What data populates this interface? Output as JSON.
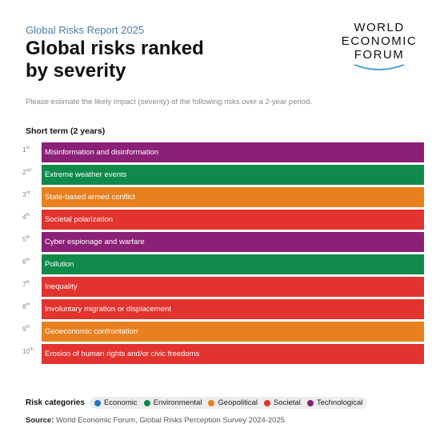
{
  "header": {
    "report_label": "Global Risks Report 2025",
    "title_line1": "Global risks ranked",
    "title_line2": "by severity",
    "subtitle": "Please estimate the likely impact (severity) of the following risks over a 2-year period."
  },
  "logo": {
    "line1": "WORLD",
    "line2": "ECONOMIC",
    "line3": "FORUM"
  },
  "section_label": "Short term (2 years)",
  "categories": {
    "Economic": "#1f78c8",
    "Environmental": "#0f8a4a",
    "Geopolitical": "#e8801f",
    "Societal": "#e2332f",
    "Technological": "#8b2077"
  },
  "ranks": [
    {
      "rank": "1",
      "suffix": "st",
      "label": "Misinformation and disinformation",
      "category": "Technological"
    },
    {
      "rank": "2",
      "suffix": "nd",
      "label": "Extreme weather events",
      "category": "Environmental"
    },
    {
      "rank": "3",
      "suffix": "rd",
      "label": "State-based armed conflict",
      "category": "Geopolitical"
    },
    {
      "rank": "4",
      "suffix": "th",
      "label": "Societal polarization",
      "category": "Societal"
    },
    {
      "rank": "5",
      "suffix": "th",
      "label": "Cyber espionage and warfare",
      "category": "Technological"
    },
    {
      "rank": "6",
      "suffix": "th",
      "label": "Pollution",
      "category": "Environmental"
    },
    {
      "rank": "7",
      "suffix": "th",
      "label": "Inequality",
      "category": "Societal"
    },
    {
      "rank": "8",
      "suffix": "th",
      "label": "Involuntary migration or displacement",
      "category": "Societal"
    },
    {
      "rank": "9",
      "suffix": "th",
      "label": "Geoeconomic confrontation",
      "category": "Geopolitical"
    },
    {
      "rank": "10",
      "suffix": "th",
      "label": "Erosion of human rights and/or civic freedoms",
      "category": "Societal"
    }
  ],
  "legend": {
    "title": "Risk categories",
    "items": [
      "Economic",
      "Environmental",
      "Geopolitical",
      "Societal",
      "Technological"
    ]
  },
  "source": {
    "label": "Source:",
    "text": "World Economic Forum, Global Risks Perception Survey 2024-2025"
  }
}
